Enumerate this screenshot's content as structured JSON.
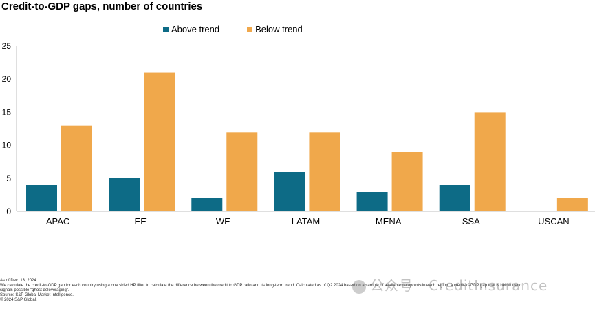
{
  "chart_data": {
    "type": "bar",
    "title": "Credit-to-GDP gaps, number of countries",
    "categories": [
      "APAC",
      "EE",
      "WE",
      "LATAM",
      "MENA",
      "SSA",
      "USCAN"
    ],
    "series": [
      {
        "name": "Above trend",
        "color": "#0d6b86",
        "values": [
          4,
          5,
          2,
          6,
          3,
          4,
          0
        ]
      },
      {
        "name": "Below trend",
        "color": "#f0a84b",
        "values": [
          13,
          21,
          12,
          12,
          9,
          15,
          2
        ]
      }
    ],
    "ylim": [
      0,
      25
    ],
    "yticks": [
      "0",
      "5",
      "10",
      "15",
      "20",
      "25"
    ],
    "grid": false,
    "legend_position": "top-center"
  },
  "footnotes": [
    "As of Dec. 13, 2024.",
    "We calculate the credit-to-GDP gap for each country using a one sided HP filter to calculate the difference between the credit to GDP ratio and its long-term trend. Calculated as of Q2 2024 based on a sample of available datapoints in each region. A credit-to-GDP gap that is below trend",
    "signals possible \"ghost deleveraging\".",
    "Source: S&P Global Market Intelligence.",
    "© 2024 S&P Global."
  ],
  "watermark": "公众号 · CreditInsurance"
}
